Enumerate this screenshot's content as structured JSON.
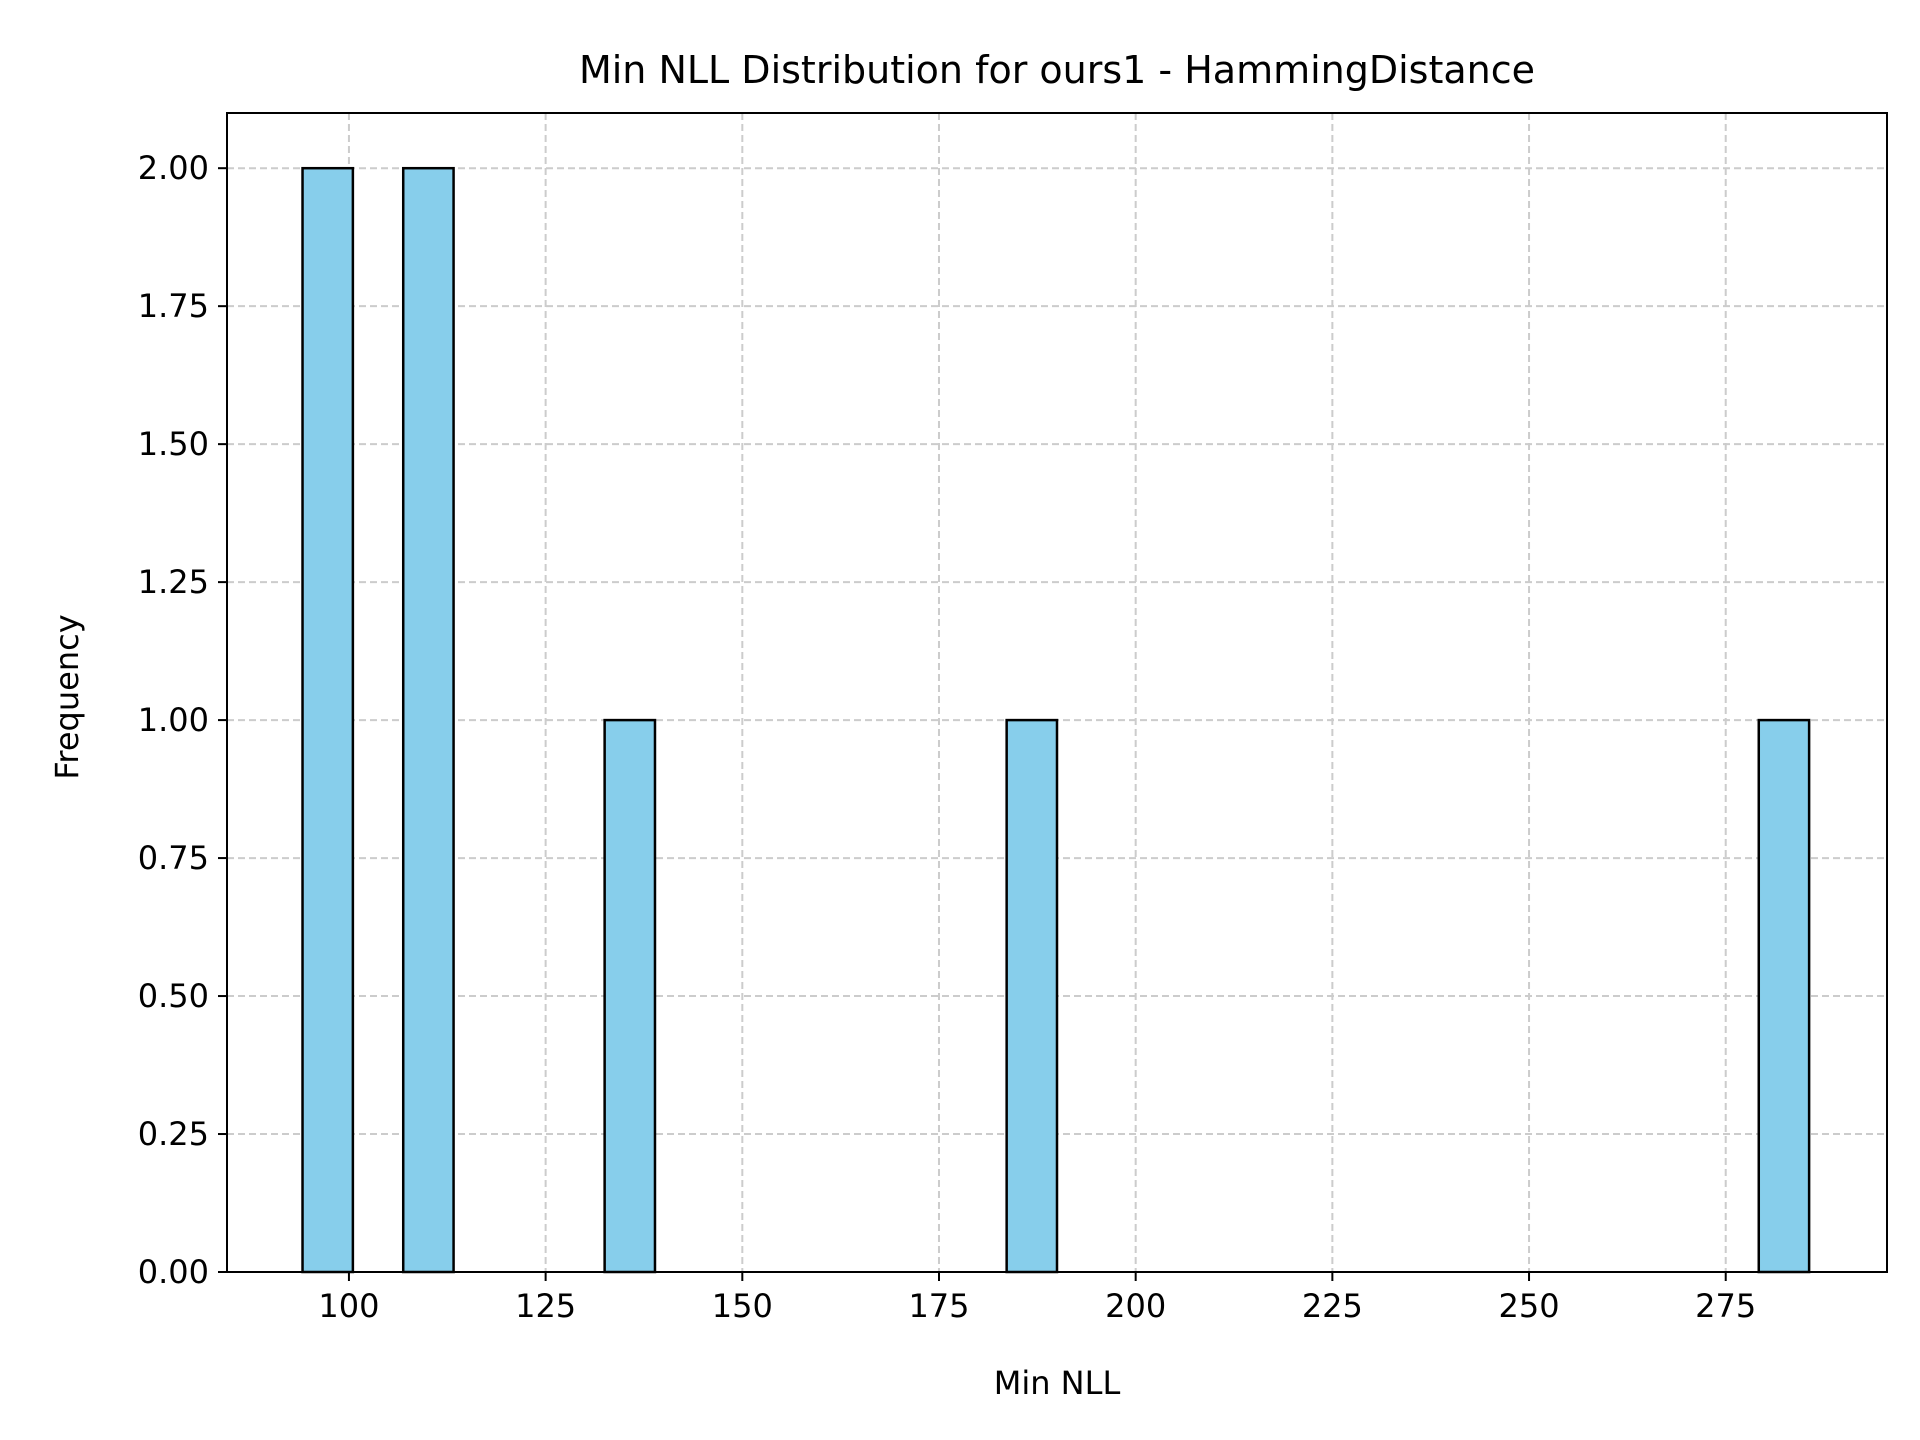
{
  "chart_data": {
    "type": "bar",
    "title": "Min NLL Distribution for ours1 - HammingDistance",
    "xlabel": "Min NLL",
    "ylabel": "Frequency",
    "xlim": [
      84.5,
      295.5
    ],
    "ylim": [
      0,
      2.1
    ],
    "grid": true,
    "legend": "none",
    "colors": {
      "bar_fill": "#87ceeb",
      "bar_edge": "#000000",
      "grid": "#cccccc"
    },
    "xticks": [
      100,
      125,
      150,
      175,
      200,
      225,
      250,
      275
    ],
    "xtick_labels": [
      "100",
      "125",
      "150",
      "175",
      "200",
      "225",
      "250",
      "275"
    ],
    "yticks": [
      0,
      0.25,
      0.5,
      0.75,
      1.0,
      1.25,
      1.5,
      1.75,
      2.0
    ],
    "ytick_labels": [
      "0.00",
      "0.25",
      "0.50",
      "0.75",
      "1.00",
      "1.25",
      "1.50",
      "1.75",
      "2.00"
    ],
    "bins": [
      {
        "start": 94.1,
        "end": 100.5,
        "value": 2
      },
      {
        "start": 106.9,
        "end": 113.3,
        "value": 2
      },
      {
        "start": 132.5,
        "end": 138.9,
        "value": 1
      },
      {
        "start": 183.6,
        "end": 190.0,
        "value": 1
      },
      {
        "start": 279.2,
        "end": 285.6,
        "value": 1
      }
    ]
  }
}
